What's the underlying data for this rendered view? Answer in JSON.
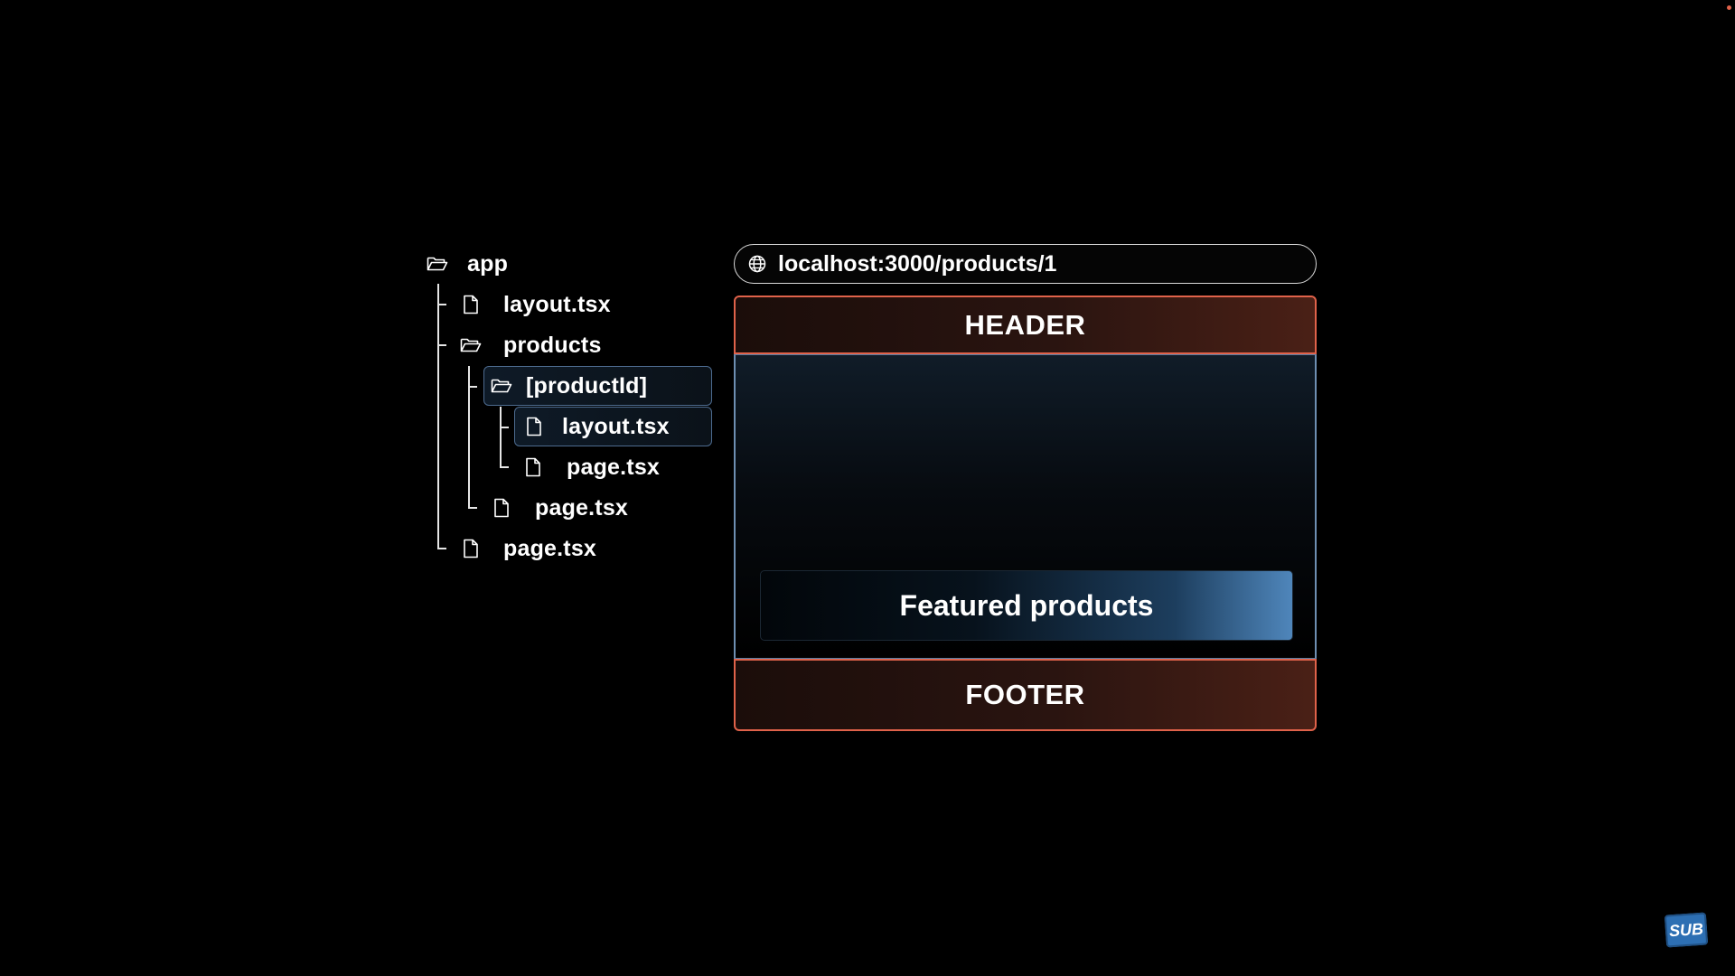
{
  "file_tree": {
    "items": [
      {
        "label": "app",
        "kind": "folder"
      },
      {
        "label": "layout.tsx",
        "kind": "file"
      },
      {
        "label": "products",
        "kind": "folder"
      },
      {
        "label": "[productId]",
        "kind": "folder",
        "selected": true
      },
      {
        "label": "layout.tsx",
        "kind": "file",
        "selected": true
      },
      {
        "label": "page.tsx",
        "kind": "file"
      },
      {
        "label": "page.tsx",
        "kind": "file"
      },
      {
        "label": "page.tsx",
        "kind": "file"
      }
    ]
  },
  "browser": {
    "url": "localhost:3000/products/1",
    "header_label": "HEADER",
    "content_label": "Featured products",
    "footer_label": "FOOTER"
  },
  "badge": {
    "label": "SUB"
  },
  "colors": {
    "background": "#000000",
    "header_footer_border": "#e0624a",
    "content_border": "#6e8fb2",
    "selected_border": "#4d6b8f",
    "featured_accent": "#4f86bb"
  }
}
